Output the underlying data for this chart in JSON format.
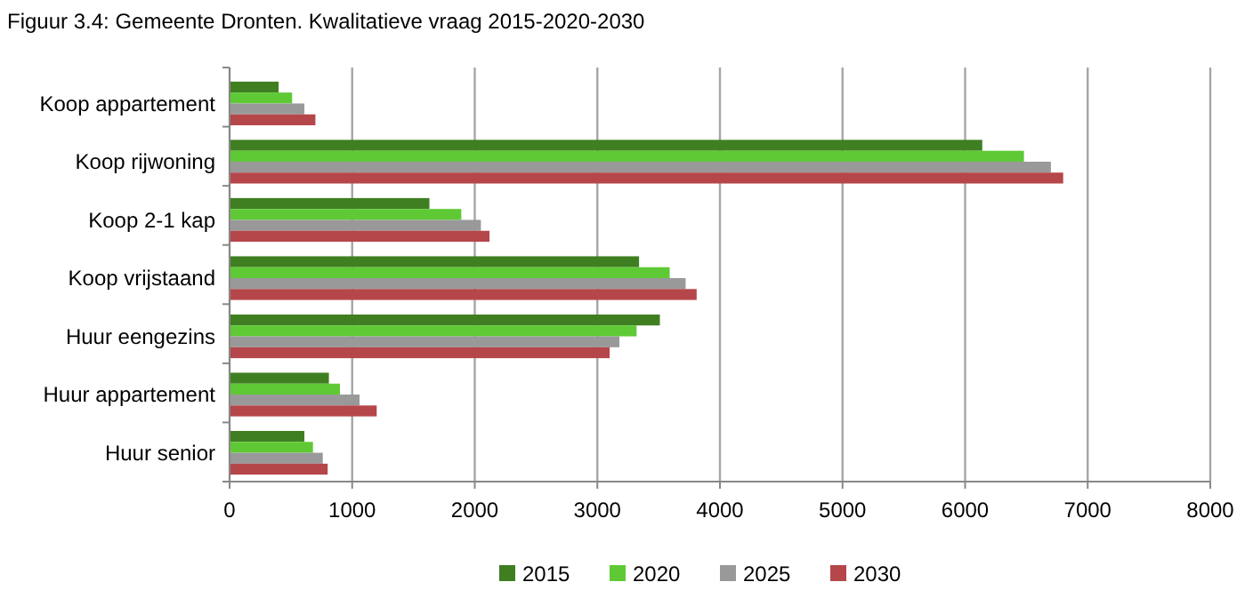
{
  "chart_data": {
    "type": "bar",
    "orientation": "horizontal",
    "title": "Figuur 3.4: Gemeente Dronten. Kwalitatieve vraag 2015-2020-2030",
    "categories": [
      "Koop appartement",
      "Koop rijwoning",
      "Koop 2-1 kap",
      "Koop vrijstaand",
      "Huur eengezins",
      "Huur appartement",
      "Huur senior"
    ],
    "series": [
      {
        "name": "2015",
        "color": "#3f7f22",
        "values": [
          400,
          6140,
          1630,
          3340,
          3510,
          810,
          610
        ]
      },
      {
        "name": "2020",
        "color": "#5ec934",
        "values": [
          510,
          6480,
          1890,
          3590,
          3320,
          900,
          680
        ]
      },
      {
        "name": "2025",
        "color": "#999999",
        "values": [
          610,
          6700,
          2050,
          3720,
          3180,
          1060,
          760
        ]
      },
      {
        "name": "2030",
        "color": "#b5464a",
        "values": [
          700,
          6800,
          2120,
          3810,
          3100,
          1200,
          800
        ]
      }
    ],
    "xlim": [
      0,
      8000
    ],
    "xticks": [
      0,
      1000,
      2000,
      3000,
      4000,
      5000,
      6000,
      7000,
      8000
    ],
    "grid": "x",
    "legend": "bottom"
  }
}
